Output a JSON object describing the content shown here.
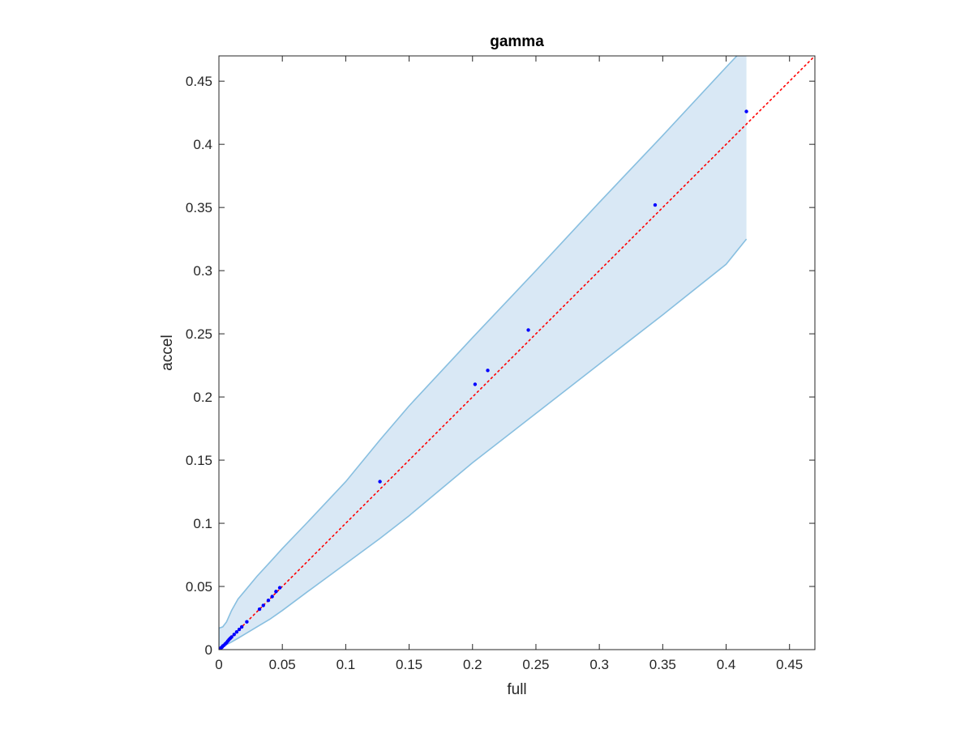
{
  "chart_data": {
    "type": "scatter",
    "title": "gamma",
    "xlabel": "full",
    "ylabel": "accel",
    "xlim": [
      0,
      0.47
    ],
    "ylim": [
      0,
      0.47
    ],
    "xticks": [
      0,
      0.05,
      0.1,
      0.15,
      0.2,
      0.25,
      0.3,
      0.35,
      0.4,
      0.45
    ],
    "yticks": [
      0,
      0.05,
      0.1,
      0.15,
      0.2,
      0.25,
      0.3,
      0.35,
      0.4,
      0.45
    ],
    "xtick_labels": [
      "0",
      "0.05",
      "0.1",
      "0.15",
      "0.2",
      "0.25",
      "0.3",
      "0.35",
      "0.4",
      "0.45"
    ],
    "ytick_labels": [
      "0",
      "0.05",
      "0.1",
      "0.15",
      "0.2",
      "0.25",
      "0.3",
      "0.35",
      "0.4",
      "0.45"
    ],
    "grid": false,
    "box": true,
    "series": [
      {
        "kind": "points",
        "color": "#0000ff",
        "x": [
          0.0003,
          0.0008,
          0.0012,
          0.0018,
          0.0025,
          0.003,
          0.004,
          0.005,
          0.006,
          0.007,
          0.008,
          0.009,
          0.01,
          0.012,
          0.014,
          0.016,
          0.018,
          0.022,
          0.032,
          0.035,
          0.039,
          0.042,
          0.045,
          0.048,
          0.127,
          0.202,
          0.212,
          0.244,
          0.344,
          0.416
        ],
        "y": [
          0.0003,
          0.0006,
          0.001,
          0.0015,
          0.002,
          0.0028,
          0.0035,
          0.0045,
          0.0055,
          0.0068,
          0.008,
          0.009,
          0.01,
          0.012,
          0.014,
          0.016,
          0.018,
          0.022,
          0.032,
          0.035,
          0.039,
          0.042,
          0.046,
          0.049,
          0.133,
          0.21,
          0.221,
          0.253,
          0.352,
          0.426
        ]
      },
      {
        "kind": "reference-line",
        "style": "dotted",
        "color": "#ff0000",
        "x": [
          0,
          0.47
        ],
        "y": [
          0,
          0.47
        ]
      }
    ],
    "band": {
      "fill": "#d9e8f5",
      "edge": "#88bfe0",
      "x": [
        0,
        0.003,
        0.006,
        0.01,
        0.015,
        0.02,
        0.03,
        0.04,
        0.05,
        0.07,
        0.1,
        0.127,
        0.15,
        0.2,
        0.25,
        0.3,
        0.35,
        0.4,
        0.416
      ],
      "upper": [
        0.017,
        0.018,
        0.022,
        0.031,
        0.04,
        0.046,
        0.058,
        0.069,
        0.08,
        0.101,
        0.133,
        0.166,
        0.193,
        0.247,
        0.3,
        0.354,
        0.407,
        0.461,
        0.478
      ],
      "lower": [
        0.0,
        0.002,
        0.004,
        0.006,
        0.009,
        0.012,
        0.018,
        0.024,
        0.031,
        0.046,
        0.068,
        0.088,
        0.106,
        0.148,
        0.187,
        0.226,
        0.265,
        0.305,
        0.325
      ]
    }
  }
}
